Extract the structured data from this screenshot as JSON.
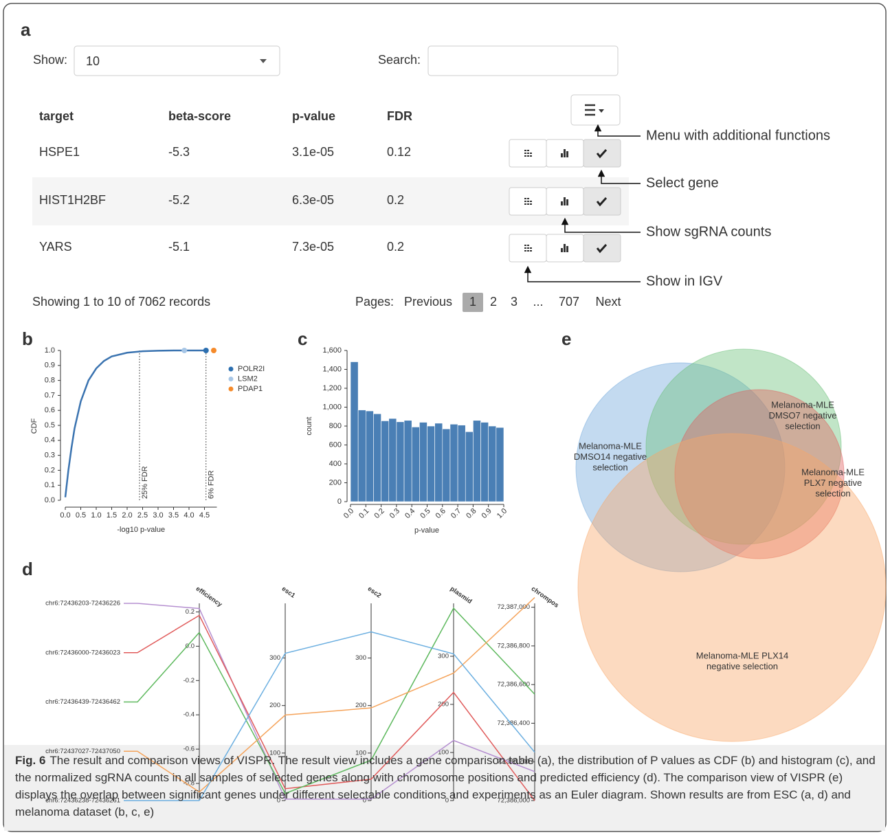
{
  "panels": [
    "a",
    "b",
    "c",
    "d",
    "e"
  ],
  "table": {
    "show_label": "Show:",
    "show_value": "10",
    "search_label": "Search:",
    "columns": [
      "target",
      "beta-score",
      "p-value",
      "FDR"
    ],
    "rows": [
      [
        "HSPE1",
        "-5.3",
        "3.1e-05",
        "0.12"
      ],
      [
        "HIST1H2BF",
        "-5.2",
        "6.3e-05",
        "0.2"
      ],
      [
        "YARS",
        "-5.1",
        "7.3e-05",
        "0.2"
      ]
    ],
    "info": "Showing 1 to 10 of 7062 records",
    "pages_label": "Pages:",
    "pages": [
      "Previous",
      "1",
      "2",
      "3",
      "...",
      "707",
      "Next"
    ]
  },
  "annotations": [
    "Menu with additional functions",
    "Select gene",
    "Show sgRNA counts",
    "Show in IGV"
  ],
  "chart_data": [
    {
      "type": "line",
      "xlabel": "-log10 p-value",
      "ylabel": "CDF",
      "x": [
        0,
        0.1,
        0.2,
        0.3,
        0.5,
        0.75,
        1.0,
        1.25,
        1.5,
        2.0,
        2.5,
        3.0,
        3.5,
        4.0,
        4.55
      ],
      "values": [
        0.02,
        0.2,
        0.35,
        0.48,
        0.66,
        0.8,
        0.88,
        0.93,
        0.96,
        0.985,
        0.995,
        0.998,
        1.0,
        1.0,
        1.0
      ],
      "color": "#3a73b0",
      "xlim": [
        0,
        4.9
      ],
      "ylim": [
        0,
        1.0
      ],
      "xticks": [
        {
          "value": 0,
          "label": "0.0"
        },
        0.5,
        {
          "value": 1,
          "label": "1.0"
        },
        1.5,
        {
          "value": 2,
          "label": "2.0"
        },
        2.5,
        {
          "value": 3,
          "label": "3.0"
        },
        3.5,
        {
          "value": 4,
          "label": "4.0"
        },
        4.5
      ],
      "yticks": [
        {
          "value": 0,
          "label": "0.0"
        },
        0.1,
        0.2,
        0.3,
        0.4,
        0.5,
        0.6,
        0.7,
        0.8,
        0.9,
        {
          "value": 1,
          "label": "1.0"
        }
      ],
      "vlines": [
        {
          "x": 2.4,
          "label": "25% FDR"
        },
        {
          "x": 4.55,
          "label": "6% FDR"
        }
      ],
      "points": [
        {
          "name": "POLR2I",
          "color": "#2c6fb0",
          "x": 4.55,
          "y": 1.0
        },
        {
          "name": "LSM2",
          "color": "#a7c6e6",
          "x": 3.85,
          "y": 1.0
        },
        {
          "name": "PDAP1",
          "color": "#f58a2a",
          "x": 4.8,
          "y": 1.0
        }
      ]
    },
    {
      "type": "histogram",
      "xlabel": "p-value",
      "ylabel": "count",
      "bins": [
        0,
        0.05,
        0.1,
        0.15,
        0.2,
        0.25,
        0.3,
        0.35,
        0.4,
        0.45,
        0.5,
        0.55,
        0.6,
        0.65,
        0.7,
        0.75,
        0.8,
        0.85,
        0.9,
        0.95,
        1.0
      ],
      "values": [
        1480,
        970,
        960,
        930,
        855,
        880,
        845,
        860,
        790,
        840,
        800,
        830,
        770,
        820,
        810,
        740,
        860,
        840,
        800,
        785
      ],
      "color": "#4a7fb5",
      "xlim": [
        0,
        1.0
      ],
      "ylim": [
        0,
        1600
      ],
      "xticks": [
        {
          "value": 0,
          "label": "0.0"
        },
        0.1,
        0.2,
        0.3,
        0.4,
        0.5,
        0.6,
        0.7,
        0.8,
        0.9,
        {
          "value": 1,
          "label": "1.0"
        }
      ],
      "yticks": [
        0,
        200,
        400,
        600,
        800,
        {
          "value": 1000,
          "label": "1,000"
        },
        {
          "value": 1200,
          "label": "1,200"
        },
        {
          "value": 1400,
          "label": "1,400"
        },
        {
          "value": 1600,
          "label": "1,600"
        }
      ]
    },
    {
      "type": "parallel",
      "axes": [
        {
          "name": "efficiency",
          "ylim": [
            -0.9,
            0.25
          ],
          "yticks": [
            0.2,
            {
              "value": 0,
              "label": "0.0"
            },
            -0.2,
            -0.4,
            -0.6,
            -0.8
          ]
        },
        {
          "name": "esc1",
          "ylim": [
            0,
            415
          ],
          "yticks": [
            0,
            100,
            200,
            300
          ]
        },
        {
          "name": "esc2",
          "ylim": [
            0,
            415
          ],
          "yticks": [
            0,
            100,
            200,
            300
          ]
        },
        {
          "name": "plasmid",
          "ylim": [
            0,
            410
          ],
          "yticks": [
            0,
            100,
            200,
            300
          ]
        },
        {
          "name": "chrompos",
          "ylim": [
            72386000,
            72387020
          ],
          "yticks": [
            {
              "value": 72386000,
              "label": "72,386,000"
            },
            {
              "value": 72386200,
              "label": "72,386,200"
            },
            {
              "value": 72386400,
              "label": "72,386,400"
            },
            {
              "value": 72386600,
              "label": "72,386,600"
            },
            {
              "value": 72386800,
              "label": "72,386,800"
            },
            {
              "value": 72387000,
              "label": "72,387,000"
            }
          ]
        }
      ],
      "series": [
        {
          "name": "chr6:72436203-72436226",
          "color": "#b58fd0",
          "values": [
            0.22,
            3,
            3,
            125,
            72386150
          ]
        },
        {
          "name": "chr6:72436000-72436023",
          "color": "#e05a5a",
          "values": [
            0.18,
            25,
            45,
            225,
            72386000
          ]
        },
        {
          "name": "chr6:72436439-72436462",
          "color": "#5cb85c",
          "values": [
            0.08,
            15,
            85,
            400,
            72386550
          ]
        },
        {
          "name": "chr6:72437027-72437050",
          "color": "#f5a35a",
          "values": [
            -0.85,
            180,
            195,
            265,
            72387050
          ]
        },
        {
          "name": "chr6:72436238-72436261",
          "color": "#6aaee0",
          "values": [
            -0.9,
            310,
            355,
            305,
            72386250
          ]
        }
      ]
    },
    {
      "type": "euler",
      "sets": [
        {
          "lines": [
            "Melanoma-MLE",
            "DMSO14 negative",
            "selection"
          ],
          "color": "#6fa8dc",
          "text_color": "#3a7fc0"
        },
        {
          "lines": [
            "Melanoma-MLE",
            "DMSO7 negative",
            "selection"
          ],
          "color": "#6cc07a",
          "text_color": "#3c9a3c"
        },
        {
          "lines": [
            "Melanoma-MLE",
            "PLX7 negative",
            "selection"
          ],
          "color": "#e06060",
          "text_color": "#d63333"
        },
        {
          "lines": [
            "Melanoma-MLE PLX14",
            "negative selection"
          ],
          "color": "#f9a868",
          "text_color": "#f08a30"
        }
      ]
    }
  ],
  "caption": {
    "label": "Fig. 6",
    "text": "The result and comparison views of VISPR. The result view includes a gene comparison table (a), the distribution of P values as CDF (b) and histogram (c), and the normalized sgRNA counts in all samples of selected genes along with chromosome positions and predicted efficiency (d). The comparison view of VISPR (e) displays the overlap between significant genes under different selectable conditions and experiments as an Euler diagram. Shown results are from ESC (a, d) and melanoma dataset (b, c, e)"
  }
}
